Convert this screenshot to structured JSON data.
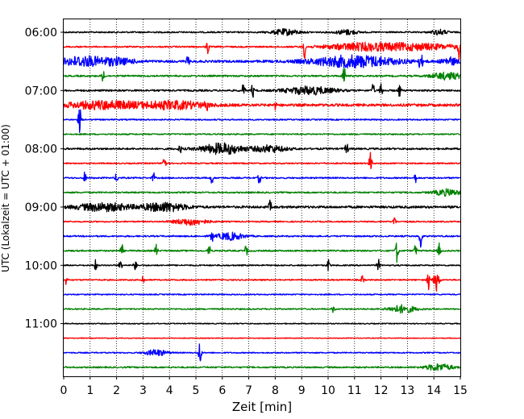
{
  "chart_data": {
    "type": "line",
    "title": "",
    "xlabel": "Zeit  [min]",
    "ylabel": "UTC (Lokalzeit = UTC + 01:00)",
    "xlim": [
      0,
      15
    ],
    "x_ticks": [
      "0",
      "1",
      "2",
      "3",
      "4",
      "5",
      "6",
      "7",
      "8",
      "9",
      "10",
      "11",
      "12",
      "13",
      "14",
      "15"
    ],
    "row_start": "06:00",
    "row_interval_minutes": 15,
    "y_tick_labels": [
      "06:00",
      "07:00",
      "08:00",
      "09:00",
      "10:00",
      "11:00"
    ],
    "grid": {
      "vertical_dotted": true
    },
    "trace_colors": [
      "#000000",
      "#ff0000",
      "#0000ff",
      "#008000"
    ],
    "rows": [
      {
        "start": "06:00",
        "color": "#000000",
        "noise": 0.9,
        "events": [
          [
            8.4,
            0.5,
            1.2
          ],
          [
            10.7,
            0.4,
            1.0
          ],
          [
            14.2,
            0.3,
            1.0
          ]
        ]
      },
      {
        "start": "06:15",
        "color": "#ff0000",
        "noise": 0.9,
        "events": [
          [
            5.45,
            0.05,
            3.2
          ],
          [
            9.1,
            0.05,
            5.0
          ],
          [
            11.0,
            1.2,
            1.0
          ],
          [
            13.0,
            2.0,
            1.4
          ],
          [
            14.95,
            0.04,
            5.0
          ]
        ]
      },
      {
        "start": "06:30",
        "color": "#0000ff",
        "noise": 1.4,
        "events": [
          [
            0.7,
            0.8,
            2.0
          ],
          [
            2.0,
            0.7,
            1.3
          ],
          [
            4.7,
            0.05,
            2.5
          ],
          [
            11.0,
            1.6,
            2.4
          ],
          [
            13.5,
            0.08,
            3.0
          ],
          [
            14.6,
            0.3,
            1.5
          ]
        ]
      },
      {
        "start": "06:45",
        "color": "#008000",
        "noise": 1.0,
        "events": [
          [
            1.5,
            0.05,
            3.0
          ],
          [
            10.6,
            0.05,
            4.5
          ],
          [
            14.5,
            0.6,
            1.4
          ]
        ]
      },
      {
        "start": "07:00",
        "color": "#000000",
        "noise": 1.1,
        "events": [
          [
            6.8,
            0.05,
            3.0
          ],
          [
            7.15,
            0.05,
            3.0
          ],
          [
            9.3,
            0.9,
            1.6
          ],
          [
            11.7,
            0.05,
            2.5
          ],
          [
            12.0,
            0.05,
            3.0
          ],
          [
            12.7,
            0.05,
            3.0
          ]
        ]
      },
      {
        "start": "07:15",
        "color": "#ff0000",
        "noise": 1.6,
        "events": [
          [
            1.5,
            1.4,
            1.6
          ],
          [
            4.2,
            1.2,
            1.5
          ],
          [
            5.4,
            0.05,
            2.5
          ],
          [
            8.0,
            0.05,
            1.5
          ]
        ]
      },
      {
        "start": "07:30",
        "color": "#0000ff",
        "noise": 0.8,
        "events": [
          [
            0.6,
            0.05,
            6.0
          ]
        ]
      },
      {
        "start": "07:45",
        "color": "#008000",
        "noise": 0.8,
        "events": []
      },
      {
        "start": "08:00",
        "color": "#000000",
        "noise": 1.1,
        "events": [
          [
            4.4,
            0.05,
            2.0
          ],
          [
            6.0,
            0.8,
            2.2
          ],
          [
            7.8,
            0.6,
            1.4
          ],
          [
            10.7,
            0.05,
            3.0
          ]
        ]
      },
      {
        "start": "08:15",
        "color": "#ff0000",
        "noise": 0.8,
        "events": [
          [
            3.8,
            0.05,
            6.5
          ],
          [
            11.6,
            0.05,
            4.5
          ]
        ]
      },
      {
        "start": "08:30",
        "color": "#0000ff",
        "noise": 0.9,
        "events": [
          [
            0.8,
            0.05,
            2.5
          ],
          [
            2.0,
            0.05,
            2.0
          ],
          [
            3.4,
            0.05,
            2.0
          ],
          [
            5.6,
            0.05,
            2.5
          ],
          [
            7.4,
            0.05,
            2.5
          ],
          [
            13.3,
            0.05,
            2.0
          ]
        ]
      },
      {
        "start": "08:45",
        "color": "#008000",
        "noise": 0.9,
        "events": [
          [
            14.5,
            0.5,
            1.3
          ]
        ]
      },
      {
        "start": "09:00",
        "color": "#000000",
        "noise": 1.4,
        "events": [
          [
            1.5,
            1.0,
            1.6
          ],
          [
            3.8,
            0.8,
            1.8
          ],
          [
            7.8,
            0.05,
            2.5
          ]
        ]
      },
      {
        "start": "09:15",
        "color": "#ff0000",
        "noise": 0.8,
        "events": [
          [
            4.8,
            0.6,
            1.4
          ],
          [
            12.5,
            0.05,
            2.5
          ]
        ]
      },
      {
        "start": "09:30",
        "color": "#0000ff",
        "noise": 0.9,
        "events": [
          [
            5.6,
            0.05,
            2.5
          ],
          [
            6.3,
            0.5,
            1.5
          ],
          [
            13.5,
            0.05,
            6.5
          ]
        ]
      },
      {
        "start": "09:45",
        "color": "#008000",
        "noise": 0.9,
        "events": [
          [
            2.2,
            0.05,
            2.5
          ],
          [
            3.5,
            0.05,
            2.5
          ],
          [
            5.5,
            0.05,
            2.5
          ],
          [
            6.9,
            0.05,
            2.5
          ],
          [
            12.6,
            0.05,
            5.0
          ],
          [
            13.3,
            0.05,
            2.5
          ],
          [
            14.2,
            0.05,
            3.0
          ]
        ]
      },
      {
        "start": "10:00",
        "color": "#000000",
        "noise": 0.8,
        "events": [
          [
            1.2,
            0.05,
            2.5
          ],
          [
            2.15,
            0.05,
            2.5
          ],
          [
            2.7,
            0.05,
            2.5
          ],
          [
            10.0,
            0.05,
            2.5
          ],
          [
            11.9,
            0.05,
            2.5
          ]
        ]
      },
      {
        "start": "10:15",
        "color": "#ff0000",
        "noise": 0.8,
        "events": [
          [
            0.1,
            0.05,
            2.0
          ],
          [
            3.0,
            0.05,
            2.0
          ],
          [
            11.3,
            0.05,
            2.0
          ],
          [
            13.8,
            0.05,
            4.5
          ],
          [
            14.1,
            0.1,
            4.5
          ]
        ]
      },
      {
        "start": "10:30",
        "color": "#0000ff",
        "noise": 0.7,
        "events": []
      },
      {
        "start": "10:45",
        "color": "#008000",
        "noise": 0.8,
        "events": [
          [
            12.8,
            0.5,
            1.6
          ],
          [
            10.2,
            0.05,
            1.5
          ]
        ]
      },
      {
        "start": "11:00",
        "color": "#000000",
        "noise": 0.6,
        "events": []
      },
      {
        "start": "11:15",
        "color": "#ff0000",
        "noise": 0.5,
        "events": []
      },
      {
        "start": "11:30",
        "color": "#0000ff",
        "noise": 0.7,
        "events": [
          [
            3.5,
            0.4,
            1.3
          ],
          [
            5.15,
            0.05,
            6.0
          ]
        ]
      },
      {
        "start": "11:45",
        "color": "#008000",
        "noise": 0.9,
        "events": [
          [
            14.2,
            0.5,
            1.4
          ]
        ]
      }
    ]
  }
}
